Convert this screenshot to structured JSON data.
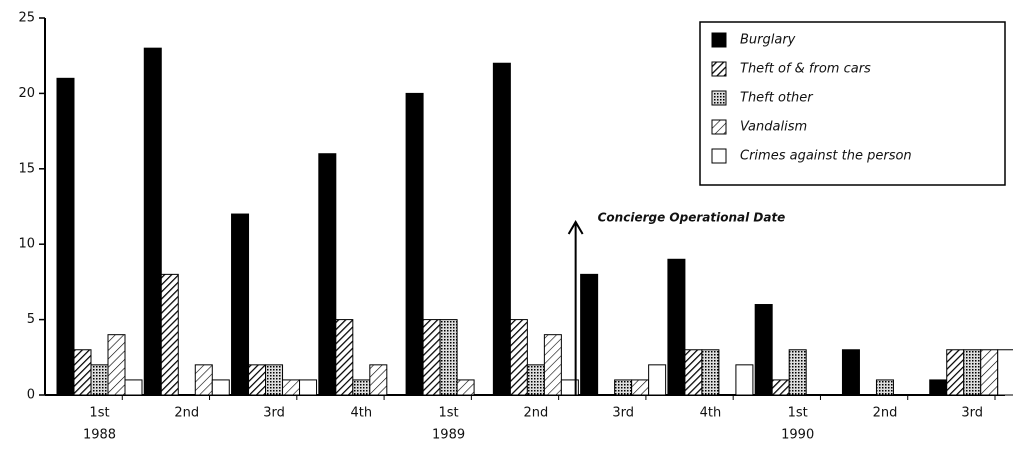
{
  "chart_data": {
    "type": "bar",
    "categories": [
      "1st",
      "2nd",
      "3rd",
      "4th",
      "1st",
      "2nd",
      "3rd",
      "4th",
      "1st",
      "2nd",
      "3rd"
    ],
    "years": [
      "1988",
      null,
      null,
      null,
      "1989",
      null,
      null,
      null,
      "1990",
      null,
      null
    ],
    "series": [
      {
        "name": "Burglary",
        "color": "#000000",
        "pattern": "solid",
        "values": [
          21,
          23,
          12,
          16,
          20,
          22,
          8,
          9,
          6,
          3,
          1
        ]
      },
      {
        "name": "Theft of & from cars",
        "color": "#000000",
        "pattern": "hatch",
        "values": [
          3,
          8,
          2,
          5,
          5,
          5,
          0,
          3,
          1,
          0,
          3
        ]
      },
      {
        "name": "Theft other",
        "color": "#000000",
        "pattern": "dots",
        "values": [
          2,
          0,
          2,
          1,
          5,
          2,
          1,
          3,
          3,
          1,
          3
        ]
      },
      {
        "name": "Vandalism",
        "color": "#000000",
        "pattern": "hatch-light",
        "values": [
          4,
          2,
          1,
          2,
          1,
          4,
          1,
          0,
          0,
          0,
          3
        ]
      },
      {
        "name": "Crimes against the person",
        "color": "#000000",
        "pattern": "none",
        "values": [
          1,
          1,
          1,
          0,
          0,
          1,
          2,
          2,
          0,
          0,
          3
        ]
      }
    ],
    "annotation": {
      "text": "Concierge Operational Date",
      "after_category": 5
    },
    "ylim": [
      0,
      25
    ],
    "yticks": [
      0,
      5,
      10,
      15,
      20,
      25
    ],
    "grid": false,
    "legend": "top-right"
  }
}
